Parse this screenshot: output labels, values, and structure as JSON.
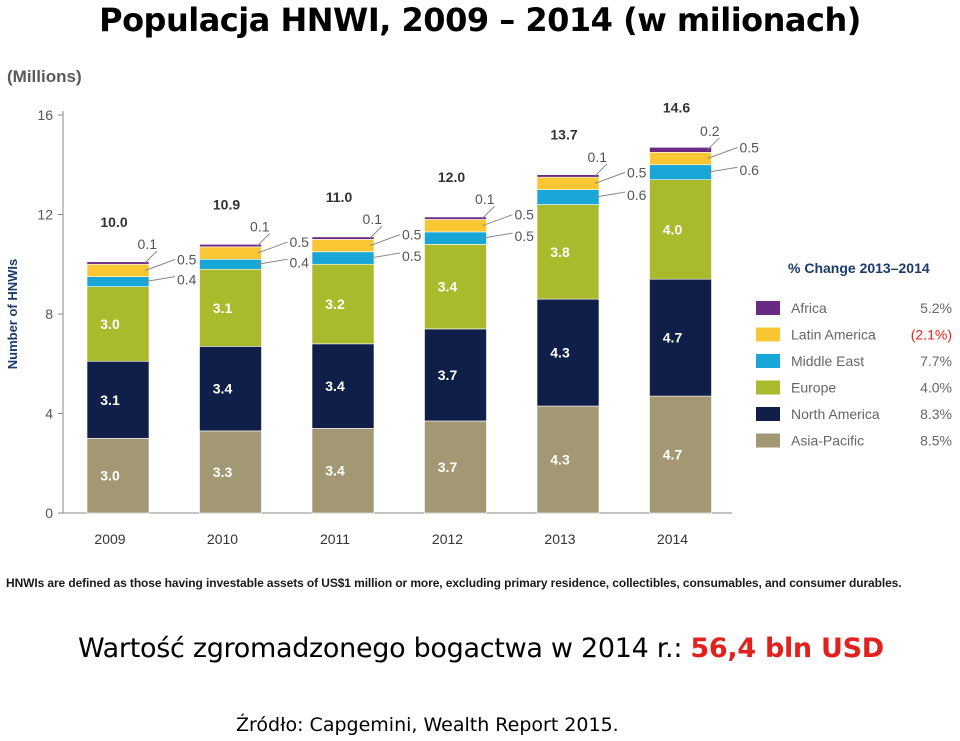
{
  "title": "Populacja HNWI, 2009 – 2014 (w milionach)",
  "footnote": "HNWIs are defined as those having investable assets of US$1 million or more, excluding primary residence, collectibles, consumables, and consumer durables.",
  "summary": {
    "prefix": "Wartość zgromadzonego bogactwa w 2014 r.: ",
    "highlight": "56,4 bln USD",
    "highlight_color": "#e3211c"
  },
  "source": "Źródło: Capgemini, Wealth Report 2015.",
  "chart_data": {
    "type": "bar",
    "stacked": true,
    "unit_label": "(Millions)",
    "ylabel": "Number of HNWIs",
    "ylim": [
      0,
      16
    ],
    "yticks": [
      "0",
      "4",
      "8",
      "12",
      "16"
    ],
    "categories": [
      "2009",
      "2010",
      "2011",
      "2012",
      "2013",
      "2014"
    ],
    "totals": [
      "10.0",
      "10.9",
      "11.0",
      "12.0",
      "13.7",
      "14.6"
    ],
    "series": [
      {
        "name": "Asia-Pacific",
        "color": "#a39873",
        "values": [
          3.0,
          3.3,
          3.4,
          3.7,
          4.3,
          4.7
        ],
        "labels": [
          "3.0",
          "3.3",
          "3.4",
          "3.7",
          "4.3",
          "4.7"
        ],
        "change": "8.5%"
      },
      {
        "name": "North America",
        "color": "#0f1f4a",
        "values": [
          3.1,
          3.4,
          3.4,
          3.7,
          4.3,
          4.7
        ],
        "labels": [
          "3.1",
          "3.4",
          "3.4",
          "3.7",
          "4.3",
          "4.7"
        ],
        "change": "8.3%"
      },
      {
        "name": "Europe",
        "color": "#a9ba2c",
        "values": [
          3.0,
          3.1,
          3.2,
          3.4,
          3.8,
          4.0
        ],
        "labels": [
          "3.0",
          "3.1",
          "3.2",
          "3.4",
          "3.8",
          "4.0"
        ],
        "change": "4.0%"
      },
      {
        "name": "Middle East",
        "color": "#17a6d6",
        "values": [
          0.4,
          0.4,
          0.5,
          0.5,
          0.6,
          0.6
        ],
        "labels": [
          "0.4",
          "0.4",
          "0.5",
          "0.5",
          "0.6",
          "0.6"
        ],
        "change": "7.7%"
      },
      {
        "name": "Latin America",
        "color": "#fbc634",
        "values": [
          0.5,
          0.5,
          0.5,
          0.5,
          0.5,
          0.5
        ],
        "labels": [
          "0.5",
          "0.5",
          "0.5",
          "0.5",
          "0.5",
          "0.5"
        ],
        "change": "(2.1%)",
        "change_negative": true
      },
      {
        "name": "Africa",
        "color": "#6a2a83",
        "values": [
          0.1,
          0.1,
          0.1,
          0.1,
          0.1,
          0.2
        ],
        "labels": [
          "0.1",
          "0.1",
          "0.1",
          "0.1",
          "0.1",
          "0.2"
        ],
        "change": "5.2%"
      }
    ],
    "legend_title": "% Change 2013–2014",
    "legend_position": "right",
    "grid": false
  }
}
